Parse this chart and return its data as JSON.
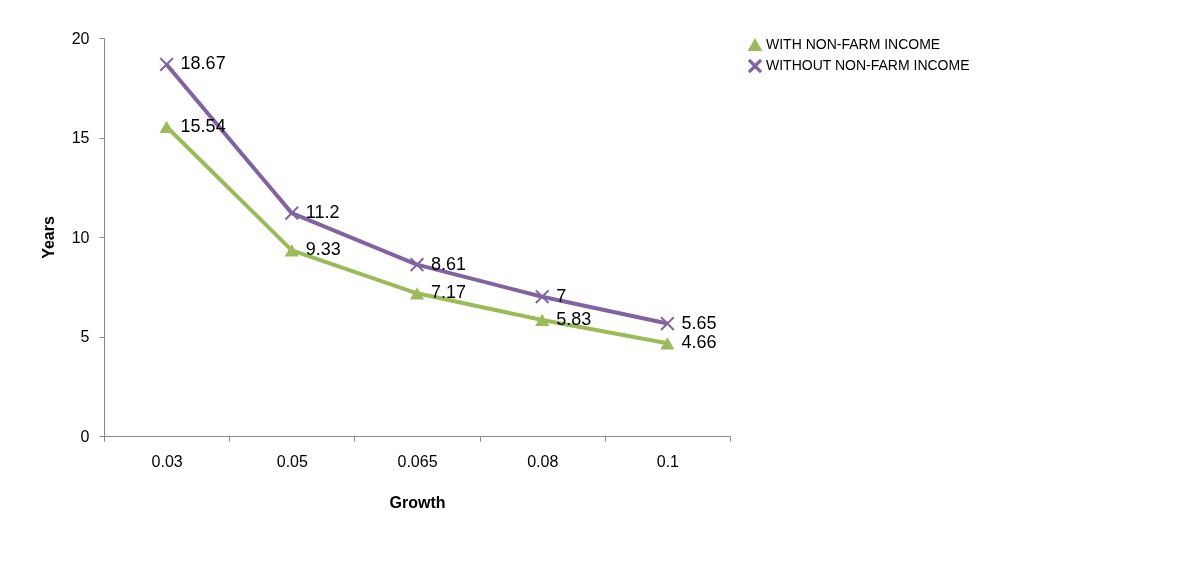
{
  "chart_data": {
    "type": "line",
    "xlabel": "Growth",
    "ylabel": "Years",
    "categories": [
      "0.03",
      "0.05",
      "0.065",
      "0.08",
      "0.1"
    ],
    "series": [
      {
        "name": "WITH NON-FARM INCOME",
        "color": "#9bbb59",
        "marker": "triangle",
        "values": [
          15.54,
          9.33,
          7.17,
          5.83,
          4.66
        ]
      },
      {
        "name": "WITHOUT NON-FARM INCOME",
        "color": "#8064a2",
        "marker": "cross",
        "values": [
          18.67,
          11.2,
          8.61,
          7,
          5.65
        ]
      }
    ],
    "ylim": [
      0,
      20
    ],
    "yticks": [
      0,
      5,
      10,
      15,
      20
    ],
    "grid": false,
    "legend": "right",
    "data_labels": true,
    "line_style": "solid"
  }
}
